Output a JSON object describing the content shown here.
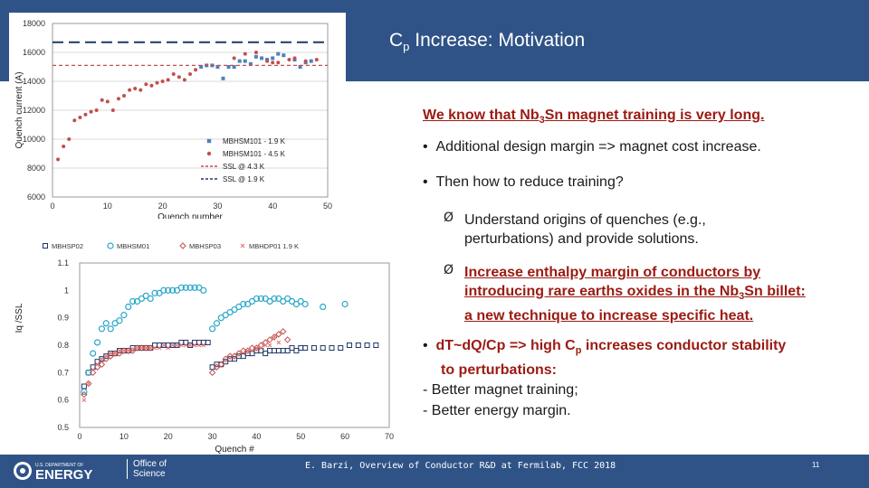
{
  "slide": {
    "title_main": "C",
    "title_sub": "p",
    "title_rest": " Increase: Motivation",
    "intro_a": "We know that Nb",
    "intro_b": "3",
    "intro_c": "Sn magnet training is very long.",
    "bullet1": "Additional design margin => magnet cost increase.",
    "bullet2": "Then how to reduce training?",
    "arrow1_l1": "Understand origins of quenches (e.g.,",
    "arrow1_l2": "perturbations) and provide solutions.",
    "arrow2_l1": "Increase enthalpy margin of conductors by",
    "arrow2_l2a": "introducing rare earths oxides in the Nb",
    "arrow2_l2b": "3",
    "arrow2_l2c": "Sn billet:",
    "arrow2_l3": "a new technique to increase specific heat.",
    "bullet3_a": "dT~dQ/Cp => high C",
    "bullet3_b": "p",
    "bullet3_c": " increases conductor stability",
    "bullet3_l2": "to perturbations:",
    "line_a": "- Better magnet training;",
    "line_b": "- Better energy margin.",
    "bullet_char": "•",
    "arrow_char": "Ø"
  },
  "footer": {
    "text": "E. Barzi, Overview of Conductor R&D at Fermilab, FCC 2018",
    "page": "11",
    "logo_small": "U.S. DEPARTMENT OF",
    "logo_big": "ENERGY",
    "office_l1": "Office of",
    "office_l2": "Science"
  },
  "colors": {
    "header": "#2f5387",
    "accent_red": "#9b1a12"
  },
  "chart_data": [
    {
      "type": "scatter",
      "xlabel": "Quench number",
      "ylabel": "Quench current (A)",
      "xlim": [
        0,
        50
      ],
      "ylim": [
        6000,
        18000
      ],
      "xticks": [
        0,
        10,
        20,
        30,
        40,
        50
      ],
      "yticks": [
        6000,
        8000,
        10000,
        12000,
        14000,
        16000,
        18000
      ],
      "legend_position": "inside-right",
      "series": [
        {
          "name": "MBHSM101 - 1.9 K",
          "marker": "square",
          "color": "#4f81bd",
          "points": [
            [
              27,
              15000
            ],
            [
              28,
              15100
            ],
            [
              29,
              15100
            ],
            [
              30,
              15000
            ],
            [
              31,
              14200
            ],
            [
              32,
              15000
            ],
            [
              33,
              15000
            ],
            [
              34,
              15400
            ],
            [
              35,
              15400
            ],
            [
              36,
              15200
            ],
            [
              37,
              15700
            ],
            [
              38,
              15600
            ],
            [
              39,
              15500
            ],
            [
              40,
              15600
            ],
            [
              41,
              15900
            ],
            [
              42,
              15800
            ],
            [
              44,
              15500
            ],
            [
              45,
              15000
            ],
            [
              46,
              15300
            ],
            [
              47,
              15400
            ]
          ]
        },
        {
          "name": "MBHSM101 - 4.5 K",
          "marker": "circle",
          "color": "#c0504d",
          "points": [
            [
              1,
              8600
            ],
            [
              2,
              9500
            ],
            [
              3,
              10000
            ],
            [
              4,
              11300
            ],
            [
              5,
              11500
            ],
            [
              6,
              11700
            ],
            [
              7,
              11900
            ],
            [
              8,
              12000
            ],
            [
              9,
              12700
            ],
            [
              10,
              12600
            ],
            [
              11,
              12000
            ],
            [
              12,
              12800
            ],
            [
              13,
              13000
            ],
            [
              14,
              13400
            ],
            [
              15,
              13500
            ],
            [
              16,
              13400
            ],
            [
              17,
              13800
            ],
            [
              18,
              13700
            ],
            [
              19,
              13900
            ],
            [
              20,
              14000
            ],
            [
              21,
              14100
            ],
            [
              22,
              14500
            ],
            [
              23,
              14300
            ],
            [
              24,
              14100
            ],
            [
              25,
              14500
            ],
            [
              26,
              14800
            ],
            [
              33,
              15600
            ],
            [
              35,
              15900
            ],
            [
              37,
              16000
            ],
            [
              39,
              15400
            ],
            [
              40,
              15300
            ],
            [
              41,
              15300
            ],
            [
              43,
              15500
            ],
            [
              44,
              15600
            ],
            [
              46,
              15400
            ],
            [
              48,
              15500
            ]
          ]
        },
        {
          "name": "SSL @ 4.3 K",
          "style": "dashed-line",
          "color": "#c0504d",
          "value": 15100
        },
        {
          "name": "SSL @ 1.9 K",
          "style": "dashed-line",
          "color": "#1f3864",
          "value": 16700
        }
      ]
    },
    {
      "type": "scatter",
      "xlabel": "Quench #",
      "ylabel": "Iq /SSL",
      "xlim": [
        0,
        70
      ],
      "ylim": [
        0.5,
        1.1
      ],
      "xticks": [
        0,
        10,
        20,
        30,
        40,
        50,
        60,
        70
      ],
      "yticks": [
        0.5,
        0.6,
        0.7,
        0.8,
        0.9,
        1,
        1.1
      ],
      "legend_position": "top",
      "series": [
        {
          "name": "MBHSP02",
          "marker": "square",
          "color": "#1f3864",
          "points": [
            [
              1,
              0.65
            ],
            [
              2,
              0.7
            ],
            [
              3,
              0.72
            ],
            [
              4,
              0.74
            ],
            [
              5,
              0.75
            ],
            [
              6,
              0.76
            ],
            [
              7,
              0.77
            ],
            [
              8,
              0.77
            ],
            [
              9,
              0.78
            ],
            [
              10,
              0.78
            ],
            [
              11,
              0.78
            ],
            [
              12,
              0.79
            ],
            [
              13,
              0.79
            ],
            [
              14,
              0.79
            ],
            [
              15,
              0.79
            ],
            [
              16,
              0.79
            ],
            [
              17,
              0.8
            ],
            [
              18,
              0.8
            ],
            [
              19,
              0.8
            ],
            [
              20,
              0.8
            ],
            [
              21,
              0.8
            ],
            [
              22,
              0.8
            ],
            [
              23,
              0.81
            ],
            [
              24,
              0.81
            ],
            [
              25,
              0.8
            ],
            [
              26,
              0.81
            ],
            [
              27,
              0.81
            ],
            [
              28,
              0.81
            ],
            [
              29,
              0.81
            ],
            [
              30,
              0.72
            ],
            [
              31,
              0.73
            ],
            [
              32,
              0.73
            ],
            [
              33,
              0.74
            ],
            [
              34,
              0.75
            ],
            [
              35,
              0.75
            ],
            [
              36,
              0.76
            ],
            [
              37,
              0.76
            ],
            [
              38,
              0.77
            ],
            [
              39,
              0.77
            ],
            [
              40,
              0.78
            ],
            [
              41,
              0.78
            ],
            [
              42,
              0.77
            ],
            [
              43,
              0.78
            ],
            [
              44,
              0.78
            ],
            [
              45,
              0.78
            ],
            [
              46,
              0.78
            ],
            [
              47,
              0.78
            ],
            [
              48,
              0.79
            ],
            [
              49,
              0.78
            ],
            [
              50,
              0.79
            ],
            [
              51,
              0.79
            ],
            [
              53,
              0.79
            ],
            [
              55,
              0.79
            ],
            [
              57,
              0.79
            ],
            [
              59,
              0.79
            ],
            [
              61,
              0.8
            ],
            [
              63,
              0.8
            ],
            [
              65,
              0.8
            ],
            [
              67,
              0.8
            ]
          ]
        },
        {
          "name": "MBHSM01",
          "marker": "circle",
          "color": "#2aa7c9",
          "points": [
            [
              1,
              0.63
            ],
            [
              2,
              0.7
            ],
            [
              3,
              0.77
            ],
            [
              4,
              0.81
            ],
            [
              5,
              0.86
            ],
            [
              6,
              0.88
            ],
            [
              7,
              0.86
            ],
            [
              8,
              0.88
            ],
            [
              9,
              0.89
            ],
            [
              10,
              0.91
            ],
            [
              11,
              0.94
            ],
            [
              12,
              0.96
            ],
            [
              13,
              0.96
            ],
            [
              14,
              0.97
            ],
            [
              15,
              0.98
            ],
            [
              16,
              0.97
            ],
            [
              17,
              0.99
            ],
            [
              18,
              0.99
            ],
            [
              19,
              1.0
            ],
            [
              20,
              1.0
            ],
            [
              21,
              1.0
            ],
            [
              22,
              1.0
            ],
            [
              23,
              1.01
            ],
            [
              24,
              1.01
            ],
            [
              25,
              1.01
            ],
            [
              26,
              1.01
            ],
            [
              27,
              1.01
            ],
            [
              28,
              1.0
            ],
            [
              30,
              0.86
            ],
            [
              31,
              0.88
            ],
            [
              32,
              0.9
            ],
            [
              33,
              0.91
            ],
            [
              34,
              0.92
            ],
            [
              35,
              0.93
            ],
            [
              36,
              0.94
            ],
            [
              37,
              0.95
            ],
            [
              38,
              0.95
            ],
            [
              39,
              0.96
            ],
            [
              40,
              0.97
            ],
            [
              41,
              0.97
            ],
            [
              42,
              0.97
            ],
            [
              43,
              0.96
            ],
            [
              44,
              0.97
            ],
            [
              45,
              0.97
            ],
            [
              46,
              0.96
            ],
            [
              47,
              0.97
            ],
            [
              48,
              0.96
            ],
            [
              49,
              0.95
            ],
            [
              50,
              0.96
            ],
            [
              51,
              0.95
            ],
            [
              55,
              0.94
            ],
            [
              60,
              0.95
            ]
          ]
        },
        {
          "name": "MBHSP03",
          "marker": "diamond",
          "color": "#c0504d",
          "points": [
            [
              1,
              0.62
            ],
            [
              2,
              0.66
            ],
            [
              3,
              0.7
            ],
            [
              4,
              0.72
            ],
            [
              5,
              0.73
            ],
            [
              6,
              0.75
            ],
            [
              7,
              0.76
            ],
            [
              8,
              0.77
            ],
            [
              9,
              0.77
            ],
            [
              10,
              0.78
            ],
            [
              11,
              0.78
            ],
            [
              12,
              0.78
            ],
            [
              13,
              0.79
            ],
            [
              14,
              0.79
            ],
            [
              15,
              0.79
            ],
            [
              16,
              0.79
            ],
            [
              30,
              0.7
            ],
            [
              31,
              0.72
            ],
            [
              32,
              0.73
            ],
            [
              33,
              0.75
            ],
            [
              34,
              0.76
            ],
            [
              35,
              0.76
            ],
            [
              36,
              0.77
            ],
            [
              37,
              0.78
            ],
            [
              38,
              0.78
            ],
            [
              39,
              0.79
            ],
            [
              40,
              0.79
            ],
            [
              41,
              0.8
            ],
            [
              42,
              0.81
            ],
            [
              43,
              0.82
            ],
            [
              44,
              0.83
            ],
            [
              45,
              0.84
            ],
            [
              46,
              0.85
            ],
            [
              47,
              0.82
            ]
          ]
        },
        {
          "name": "MBHDP01 1.9 K",
          "marker": "x",
          "color": "#e07070",
          "points": [
            [
              1,
              0.6
            ],
            [
              2,
              0.66
            ],
            [
              3,
              0.71
            ],
            [
              4,
              0.73
            ],
            [
              5,
              0.75
            ],
            [
              6,
              0.76
            ],
            [
              7,
              0.77
            ],
            [
              8,
              0.77
            ],
            [
              9,
              0.78
            ],
            [
              10,
              0.78
            ],
            [
              11,
              0.78
            ],
            [
              12,
              0.78
            ],
            [
              13,
              0.79
            ],
            [
              14,
              0.79
            ],
            [
              15,
              0.79
            ],
            [
              16,
              0.79
            ],
            [
              17,
              0.79
            ],
            [
              18,
              0.79
            ],
            [
              19,
              0.8
            ],
            [
              20,
              0.79
            ],
            [
              21,
              0.8
            ],
            [
              22,
              0.8
            ],
            [
              23,
              0.8
            ],
            [
              24,
              0.8
            ],
            [
              25,
              0.8
            ],
            [
              26,
              0.8
            ],
            [
              27,
              0.8
            ],
            [
              28,
              0.8
            ],
            [
              38,
              0.78
            ],
            [
              39,
              0.78
            ],
            [
              40,
              0.79
            ],
            [
              41,
              0.79
            ],
            [
              42,
              0.8
            ],
            [
              43,
              0.8
            ],
            [
              44,
              0.83
            ],
            [
              45,
              0.81
            ]
          ]
        }
      ]
    }
  ]
}
